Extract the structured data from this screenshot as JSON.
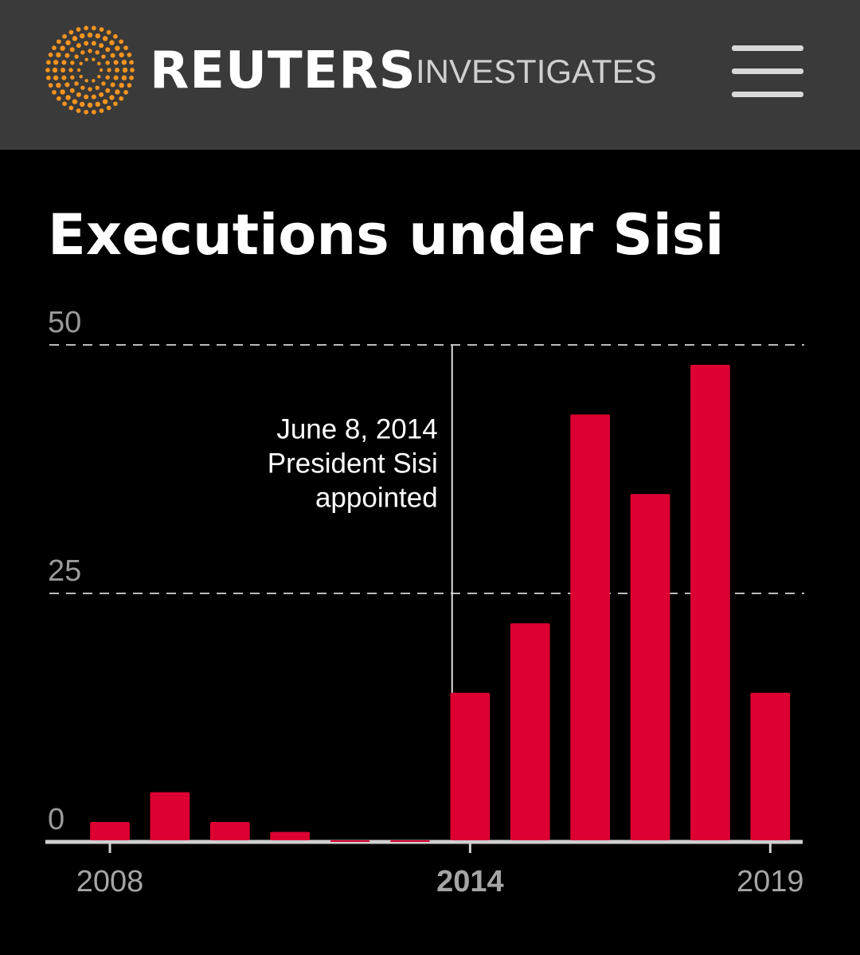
{
  "header": {
    "brand": "REUTERS",
    "section": "INVESTIGATES"
  },
  "chart_data": {
    "type": "bar",
    "title": "Executions under Sisi",
    "categories": [
      "2008",
      null,
      null,
      null,
      null,
      null,
      "2014",
      null,
      null,
      null,
      null,
      "2019"
    ],
    "values": [
      2,
      5,
      2,
      1,
      0,
      0,
      15,
      22,
      43,
      35,
      48,
      15
    ],
    "color": "#dc0033",
    "ylim": [
      0,
      50
    ],
    "yticks": [
      0,
      25,
      50
    ],
    "grid": true,
    "highlight": "2014",
    "annotation": [
      "June 8, 2014",
      "President Sisi",
      "appointed"
    ]
  }
}
